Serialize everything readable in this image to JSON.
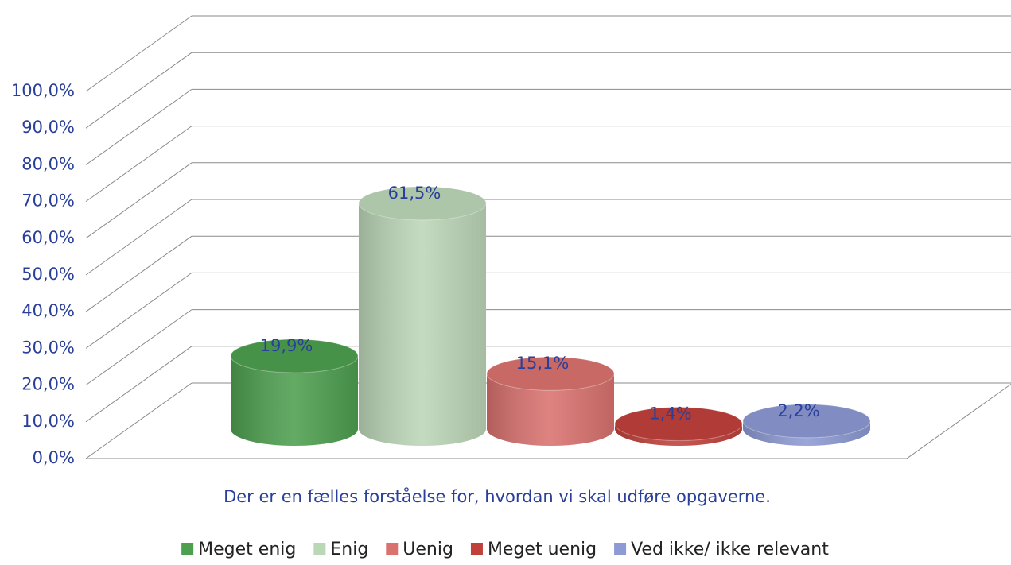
{
  "chart_data": {
    "type": "bar3d",
    "categories": [
      "Der er en fælles forståelse for, hvordan vi skal udføre opgaverne."
    ],
    "series": [
      {
        "name": "Meget enig",
        "color": "#4e9f50",
        "values": [
          19.9
        ],
        "value_labels": [
          "19,9%"
        ]
      },
      {
        "name": "Enig",
        "color": "#bcd6b8",
        "values": [
          61.5
        ],
        "value_labels": [
          "61,5%"
        ]
      },
      {
        "name": "Uenig",
        "color": "#d9726f",
        "values": [
          15.1
        ],
        "value_labels": [
          "15,1%"
        ]
      },
      {
        "name": "Meget uenig",
        "color": "#c0413b",
        "values": [
          1.4
        ],
        "value_labels": [
          "1,4%"
        ]
      },
      {
        "name": "Ved ikke/ ikke relevant",
        "color": "#8d9ad3",
        "values": [
          2.2
        ],
        "value_labels": [
          "2,2%"
        ]
      }
    ],
    "ylim": [
      0,
      100
    ],
    "yticks": [
      {
        "value": 0,
        "label": "0,0%"
      },
      {
        "value": 10,
        "label": "10,0%"
      },
      {
        "value": 20,
        "label": "20,0%"
      },
      {
        "value": 30,
        "label": "30,0%"
      },
      {
        "value": 40,
        "label": "40,0%"
      },
      {
        "value": 50,
        "label": "50,0%"
      },
      {
        "value": 60,
        "label": "60,0%"
      },
      {
        "value": 70,
        "label": "70,0%"
      },
      {
        "value": 80,
        "label": "80,0%"
      },
      {
        "value": 90,
        "label": "90,0%"
      },
      {
        "value": 100,
        "label": "100,0%"
      }
    ],
    "grid": true,
    "legend": "bottom"
  }
}
